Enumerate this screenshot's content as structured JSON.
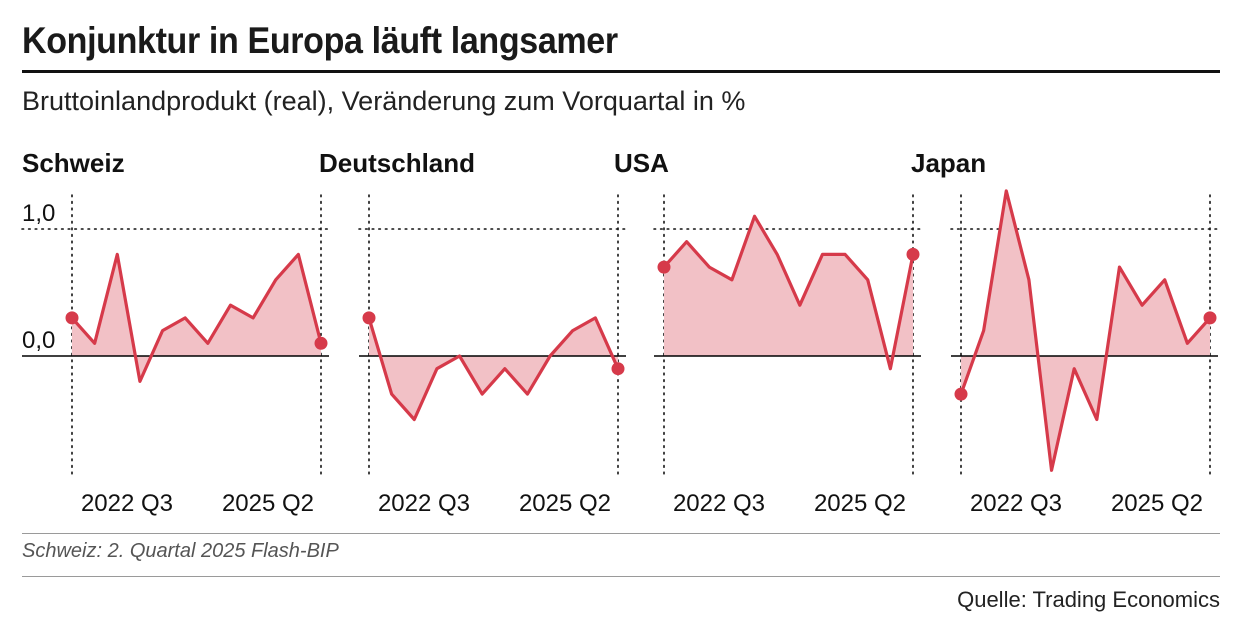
{
  "header": {
    "title": "Konjunktur in Europa läuft langsamer",
    "subtitle": "Bruttoinlandprodukt (real), Veränderung zum Vorquartal in %"
  },
  "footer": {
    "note": "Schweiz: 2. Quartal 2025 Flash-BIP",
    "source": "Quelle: Trading Economics"
  },
  "colors": {
    "line": "#d63a4a",
    "fill": "#f2c1c6",
    "text": "#111111",
    "grid": "#111111"
  },
  "chart_data": {
    "type": "area",
    "shared_y": {
      "ylim": [
        -0.9,
        1.3
      ],
      "ticks": [
        {
          "value": 1.0,
          "label": "1,0"
        },
        {
          "value": 0.0,
          "label": "0,0"
        }
      ]
    },
    "x_axis": {
      "tick_labels": [
        {
          "index": 4,
          "label": "2022 Q3"
        },
        {
          "index": 15,
          "label": "2025 Q2"
        }
      ]
    },
    "panels": [
      {
        "name": "Schweiz",
        "values": [
          0.3,
          0.1,
          0.8,
          -0.2,
          0.2,
          0.3,
          0.1,
          0.4,
          0.3,
          0.6,
          0.8,
          0.1
        ]
      },
      {
        "name": "Deutschland",
        "values": [
          0.3,
          -0.3,
          -0.5,
          -0.1,
          0.0,
          -0.3,
          -0.1,
          -0.3,
          0.0,
          0.2,
          0.3,
          -0.1
        ]
      },
      {
        "name": "USA",
        "values": [
          0.7,
          0.9,
          0.7,
          0.6,
          1.1,
          0.8,
          0.4,
          0.8,
          0.8,
          0.6,
          -0.1,
          0.8
        ]
      },
      {
        "name": "Japan",
        "values": [
          -0.3,
          0.2,
          1.3,
          0.6,
          -0.9,
          -0.1,
          -0.5,
          0.7,
          0.4,
          0.6,
          0.1,
          0.3
        ]
      }
    ]
  }
}
